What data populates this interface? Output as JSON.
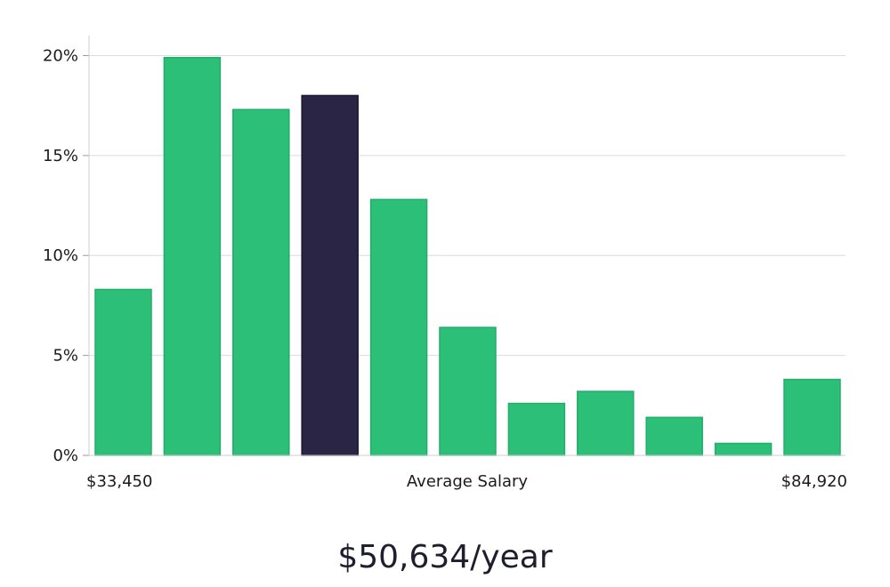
{
  "chart_data": {
    "type": "bar",
    "values": [
      8.3,
      19.9,
      17.3,
      18.0,
      12.8,
      6.4,
      2.6,
      3.2,
      1.9,
      0.6,
      3.8
    ],
    "highlight_index": 3,
    "ylim": [
      0,
      21
    ],
    "yticks": [
      0,
      5,
      10,
      15,
      20
    ],
    "ytick_labels": [
      "0%",
      "5%",
      "10%",
      "15%",
      "20%"
    ],
    "x_min_label": "$33,450",
    "x_center_label": "Average Salary",
    "x_max_label": "$84,920",
    "bar_color": "#2bbf77",
    "highlight_color": "#2a2545",
    "grid": true
  },
  "summary": {
    "average_salary": "$50,634/year"
  }
}
